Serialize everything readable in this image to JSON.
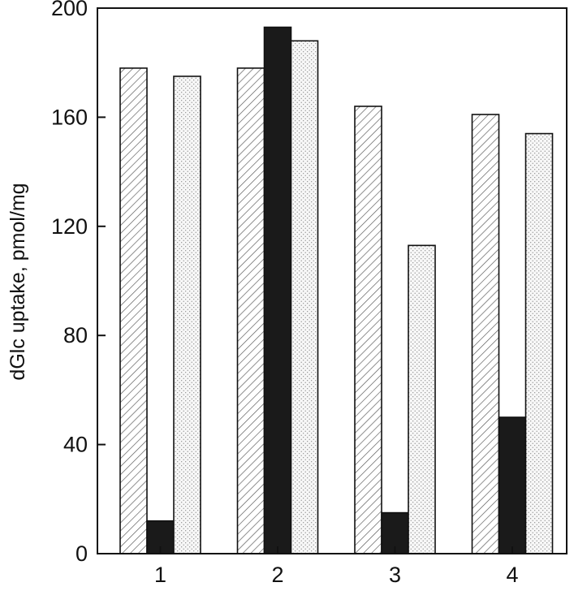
{
  "chart_data": {
    "type": "bar",
    "title": "",
    "xlabel": "",
    "ylabel": "dGlc uptake, pmol/mg",
    "categories": [
      "1",
      "2",
      "3",
      "4"
    ],
    "ylim": [
      0,
      200
    ],
    "yticks": [
      0,
      40,
      80,
      120,
      160,
      200
    ],
    "grid": false,
    "legend": "none",
    "series": [
      {
        "values": [
          178,
          178,
          164,
          161
        ],
        "pattern": "diagonal-hatch",
        "color": "#ffffff"
      },
      {
        "values": [
          12,
          193,
          15,
          50
        ],
        "pattern": "solid",
        "color": "#1a1a1a"
      },
      {
        "values": [
          175,
          188,
          113,
          154
        ],
        "pattern": "stipple",
        "color": "#f2f2f2"
      }
    ]
  }
}
